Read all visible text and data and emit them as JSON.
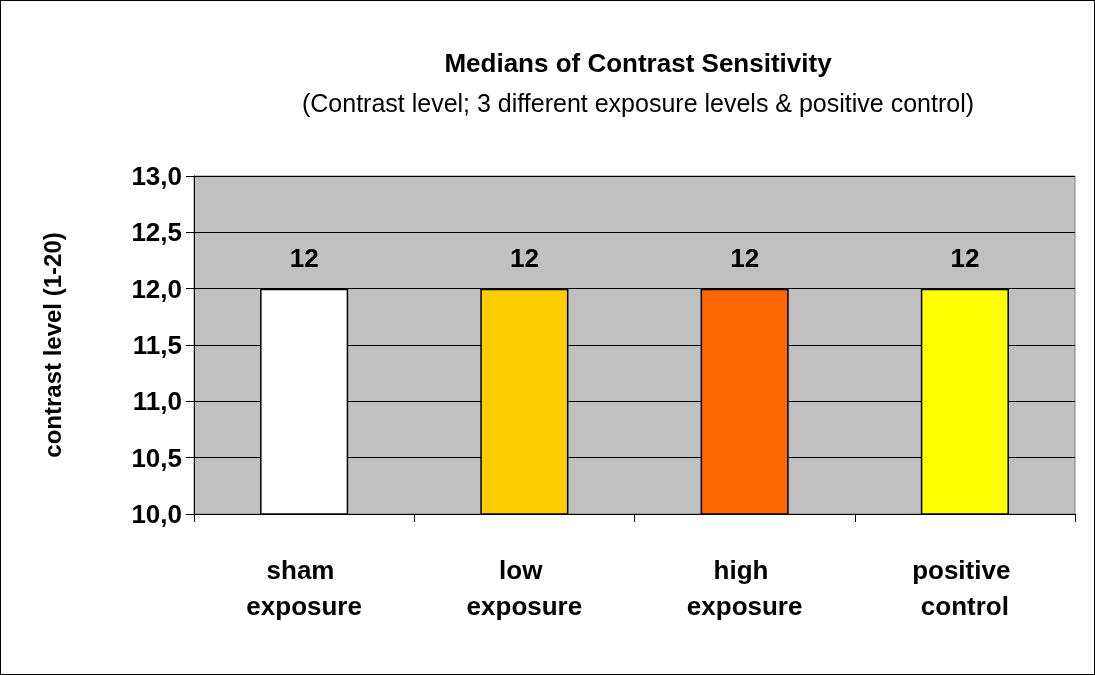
{
  "chart_data": {
    "type": "bar",
    "title": "Medians of Contrast Sensitivity",
    "subtitle": "(Contrast level; 3 different exposure levels & positive control)",
    "ylabel": "contrast level (1-20)",
    "categories": [
      "sham exposure",
      "low exposure",
      "high exposure",
      "positive control"
    ],
    "values": [
      12,
      12,
      12,
      12
    ],
    "colors": [
      "#ffffff",
      "#ffcc00",
      "#ff6600",
      "#ffff00"
    ],
    "ylim": [
      10,
      13
    ],
    "yticks": [
      {
        "value": 10,
        "label": "10,0"
      },
      {
        "value": 10.5,
        "label": "10,5"
      },
      {
        "value": 11,
        "label": "11,0"
      },
      {
        "value": 11.5,
        "label": "11,5"
      },
      {
        "value": 12,
        "label": "12,0"
      },
      {
        "value": 12.5,
        "label": "12,5"
      },
      {
        "value": 13,
        "label": "13,0"
      }
    ],
    "grid": "y",
    "data_labels": true
  }
}
